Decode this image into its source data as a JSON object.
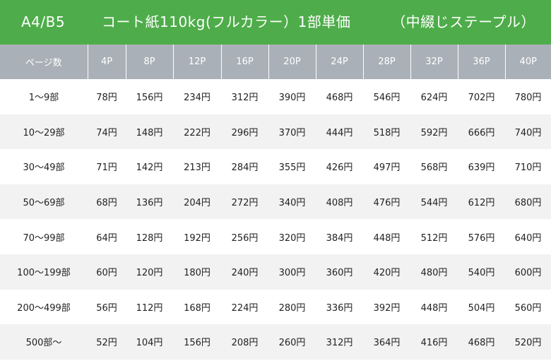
{
  "banner": {
    "size": "A4/B5",
    "description": "コート紙110kg(フルカラー）1部単価",
    "binding": "（中綴じステープル）"
  },
  "table": {
    "corner_header": "ページ数",
    "columns": [
      "4P",
      "8P",
      "12P",
      "16P",
      "20P",
      "24P",
      "28P",
      "32P",
      "36P",
      "40P"
    ],
    "rows": [
      {
        "label": "1〜9部",
        "prices": [
          "78円",
          "156円",
          "234円",
          "312円",
          "390円",
          "468円",
          "546円",
          "624円",
          "702円",
          "780円"
        ]
      },
      {
        "label": "10〜29部",
        "prices": [
          "74円",
          "148円",
          "222円",
          "296円",
          "370円",
          "444円",
          "518円",
          "592円",
          "666円",
          "740円"
        ]
      },
      {
        "label": "30〜49部",
        "prices": [
          "71円",
          "142円",
          "213円",
          "284円",
          "355円",
          "426円",
          "497円",
          "568円",
          "639円",
          "710円"
        ]
      },
      {
        "label": "50〜69部",
        "prices": [
          "68円",
          "136円",
          "204円",
          "272円",
          "340円",
          "408円",
          "476円",
          "544円",
          "612円",
          "680円"
        ]
      },
      {
        "label": "70〜99部",
        "prices": [
          "64円",
          "128円",
          "192円",
          "256円",
          "320円",
          "384円",
          "448円",
          "512円",
          "576円",
          "640円"
        ]
      },
      {
        "label": "100〜199部",
        "prices": [
          "60円",
          "120円",
          "180円",
          "240円",
          "300円",
          "360円",
          "420円",
          "480円",
          "540円",
          "600円"
        ]
      },
      {
        "label": "200〜499部",
        "prices": [
          "56円",
          "112円",
          "168円",
          "224円",
          "280円",
          "336円",
          "392円",
          "448円",
          "504円",
          "560円"
        ]
      },
      {
        "label": "500部〜",
        "prices": [
          "52円",
          "104円",
          "156円",
          "208円",
          "260円",
          "312円",
          "364円",
          "416円",
          "468円",
          "520円"
        ]
      }
    ]
  }
}
